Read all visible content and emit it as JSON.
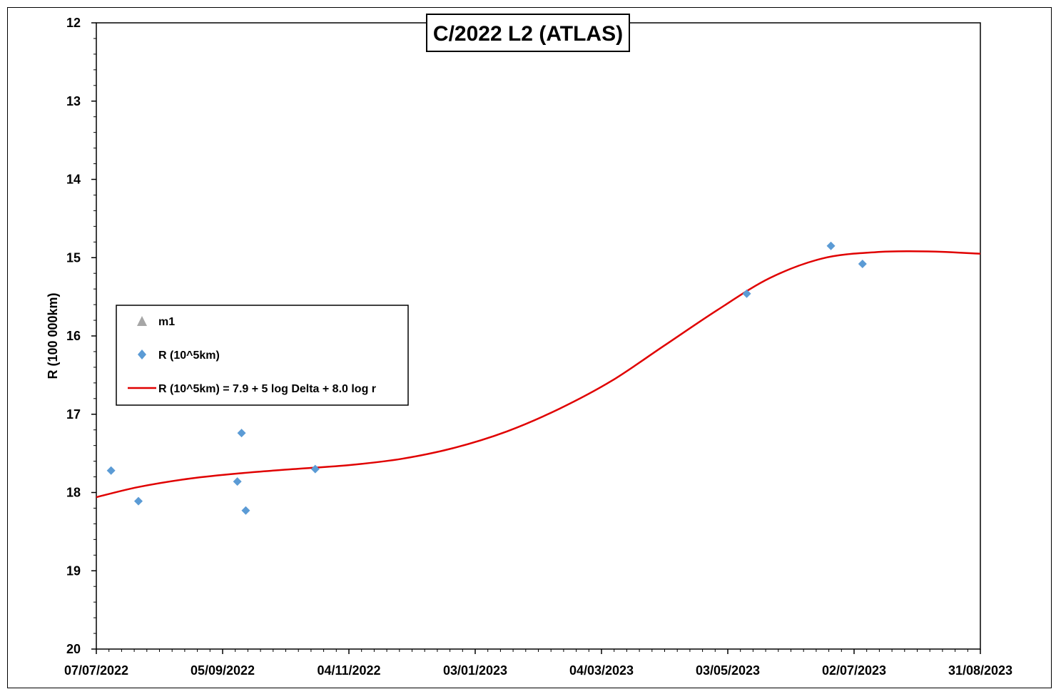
{
  "chart_data": {
    "type": "scatter",
    "title": "C/2022 L2 (ATLAS)",
    "ylabel": "R (100 000km)",
    "xlabel": "",
    "y_axis_inverted": true,
    "ylim": [
      12,
      20
    ],
    "yticks": [
      12,
      13,
      14,
      15,
      16,
      17,
      18,
      19,
      20
    ],
    "xlim": [
      "07/07/2022",
      "31/08/2023"
    ],
    "xticks": [
      "07/07/2022",
      "05/09/2022",
      "04/11/2022",
      "03/01/2023",
      "04/03/2023",
      "03/05/2023",
      "02/07/2023",
      "31/08/2023"
    ],
    "grid": false,
    "legend_position": "left-middle",
    "series": [
      {
        "name": "m1",
        "marker": "triangle",
        "color": "#a6a6a6",
        "points": []
      },
      {
        "name": "R (10^5km)",
        "marker": "diamond",
        "color": "#5b9bd5",
        "points": [
          {
            "x": "14/07/2022",
            "y": 17.72
          },
          {
            "x": "27/07/2022",
            "y": 18.11
          },
          {
            "x": "12/09/2022",
            "y": 17.86
          },
          {
            "x": "14/09/2022",
            "y": 17.24
          },
          {
            "x": "16/09/2022",
            "y": 18.23
          },
          {
            "x": "19/10/2022",
            "y": 17.7
          },
          {
            "x": "12/05/2023",
            "y": 15.46
          },
          {
            "x": "21/06/2023",
            "y": 14.85
          },
          {
            "x": "06/07/2023",
            "y": 15.08
          }
        ]
      },
      {
        "name": "R (10^5km) = 7.9 + 5 log Delta + 8.0 log r",
        "marker": "line",
        "color": "#e00000",
        "points": [
          {
            "x": "07/07/2022",
            "y": 18.06
          },
          {
            "x": "27/07/2022",
            "y": 17.93
          },
          {
            "x": "21/08/2022",
            "y": 17.82
          },
          {
            "x": "15/09/2022",
            "y": 17.75
          },
          {
            "x": "09/10/2022",
            "y": 17.7
          },
          {
            "x": "04/11/2022",
            "y": 17.65
          },
          {
            "x": "29/11/2022",
            "y": 17.57
          },
          {
            "x": "24/12/2022",
            "y": 17.43
          },
          {
            "x": "18/01/2023",
            "y": 17.22
          },
          {
            "x": "12/02/2023",
            "y": 16.93
          },
          {
            "x": "09/03/2023",
            "y": 16.57
          },
          {
            "x": "03/04/2023",
            "y": 16.12
          },
          {
            "x": "28/04/2023",
            "y": 15.67
          },
          {
            "x": "23/05/2023",
            "y": 15.26
          },
          {
            "x": "17/06/2023",
            "y": 15.01
          },
          {
            "x": "12/07/2023",
            "y": 14.93
          },
          {
            "x": "06/08/2023",
            "y": 14.92
          },
          {
            "x": "31/08/2023",
            "y": 14.95
          }
        ]
      }
    ]
  }
}
